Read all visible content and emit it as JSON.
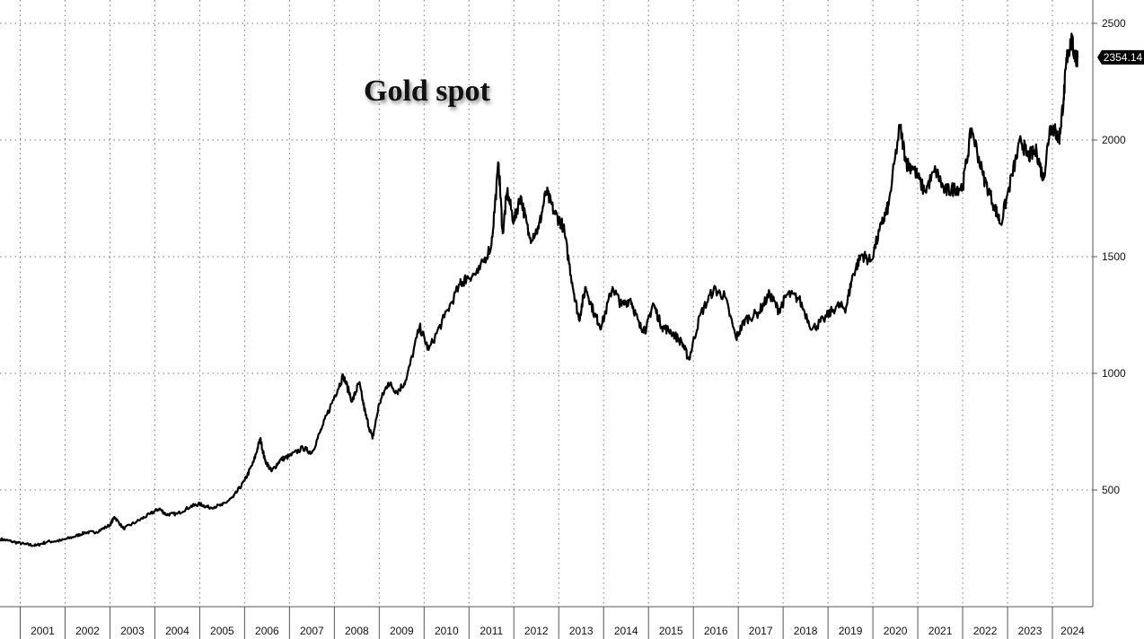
{
  "chart_data": {
    "type": "line",
    "title": "Gold spot",
    "xlabel": "",
    "ylabel": "",
    "xlim": [
      2000.55,
      2024.9
    ],
    "ylim": [
      0,
      2600
    ],
    "grid": true,
    "x_ticks": [
      "2001",
      "2002",
      "2003",
      "2004",
      "2005",
      "2006",
      "2007",
      "2008",
      "2009",
      "2010",
      "2011",
      "2012",
      "2013",
      "2014",
      "2015",
      "2016",
      "2017",
      "2018",
      "2019",
      "2020",
      "2021",
      "2022",
      "2023",
      "2024"
    ],
    "y_ticks": [
      500,
      1000,
      1500,
      2000,
      2500
    ],
    "last_value": "2354.14",
    "series": [
      {
        "points": [
          [
            2000.55,
            290
          ],
          [
            2000.8,
            280
          ],
          [
            2001.1,
            268
          ],
          [
            2001.35,
            262
          ],
          [
            2001.6,
            278
          ],
          [
            2001.9,
            283
          ],
          [
            2002.2,
            300
          ],
          [
            2002.45,
            318
          ],
          [
            2002.7,
            320
          ],
          [
            2003.0,
            350
          ],
          [
            2003.1,
            385
          ],
          [
            2003.3,
            335
          ],
          [
            2003.6,
            365
          ],
          [
            2003.9,
            398
          ],
          [
            2004.1,
            420
          ],
          [
            2004.25,
            395
          ],
          [
            2004.5,
            398
          ],
          [
            2004.8,
            430
          ],
          [
            2005.0,
            440
          ],
          [
            2005.2,
            425
          ],
          [
            2005.5,
            435
          ],
          [
            2005.75,
            470
          ],
          [
            2006.0,
            540
          ],
          [
            2006.2,
            620
          ],
          [
            2006.35,
            720
          ],
          [
            2006.45,
            630
          ],
          [
            2006.6,
            580
          ],
          [
            2006.8,
            630
          ],
          [
            2007.0,
            645
          ],
          [
            2007.3,
            680
          ],
          [
            2007.5,
            660
          ],
          [
            2007.75,
            780
          ],
          [
            2008.0,
            900
          ],
          [
            2008.2,
            990
          ],
          [
            2008.4,
            880
          ],
          [
            2008.55,
            960
          ],
          [
            2008.7,
            820
          ],
          [
            2008.85,
            720
          ],
          [
            2009.0,
            870
          ],
          [
            2009.2,
            960
          ],
          [
            2009.4,
            920
          ],
          [
            2009.6,
            970
          ],
          [
            2009.9,
            1200
          ],
          [
            2010.1,
            1100
          ],
          [
            2010.45,
            1240
          ],
          [
            2010.8,
            1380
          ],
          [
            2010.95,
            1410
          ],
          [
            2011.2,
            1430
          ],
          [
            2011.5,
            1550
          ],
          [
            2011.66,
            1900
          ],
          [
            2011.75,
            1600
          ],
          [
            2011.85,
            1780
          ],
          [
            2012.0,
            1650
          ],
          [
            2012.15,
            1760
          ],
          [
            2012.35,
            1580
          ],
          [
            2012.55,
            1620
          ],
          [
            2012.72,
            1780
          ],
          [
            2012.9,
            1690
          ],
          [
            2013.1,
            1630
          ],
          [
            2013.3,
            1390
          ],
          [
            2013.45,
            1230
          ],
          [
            2013.6,
            1370
          ],
          [
            2013.8,
            1250
          ],
          [
            2013.95,
            1200
          ],
          [
            2014.2,
            1370
          ],
          [
            2014.4,
            1290
          ],
          [
            2014.6,
            1320
          ],
          [
            2014.8,
            1200
          ],
          [
            2014.95,
            1190
          ],
          [
            2015.1,
            1300
          ],
          [
            2015.3,
            1200
          ],
          [
            2015.5,
            1180
          ],
          [
            2015.75,
            1130
          ],
          [
            2015.9,
            1060
          ],
          [
            2016.15,
            1250
          ],
          [
            2016.45,
            1360
          ],
          [
            2016.7,
            1330
          ],
          [
            2016.95,
            1150
          ],
          [
            2017.15,
            1230
          ],
          [
            2017.45,
            1260
          ],
          [
            2017.7,
            1340
          ],
          [
            2017.9,
            1270
          ],
          [
            2018.1,
            1340
          ],
          [
            2018.35,
            1320
          ],
          [
            2018.65,
            1190
          ],
          [
            2018.9,
            1230
          ],
          [
            2019.2,
            1290
          ],
          [
            2019.4,
            1280
          ],
          [
            2019.55,
            1420
          ],
          [
            2019.75,
            1510
          ],
          [
            2019.95,
            1480
          ],
          [
            2020.2,
            1640
          ],
          [
            2020.35,
            1720
          ],
          [
            2020.6,
            2060
          ],
          [
            2020.75,
            1900
          ],
          [
            2020.9,
            1880
          ],
          [
            2021.15,
            1780
          ],
          [
            2021.4,
            1870
          ],
          [
            2021.6,
            1780
          ],
          [
            2021.8,
            1790
          ],
          [
            2022.0,
            1800
          ],
          [
            2022.2,
            2050
          ],
          [
            2022.45,
            1850
          ],
          [
            2022.7,
            1720
          ],
          [
            2022.85,
            1640
          ],
          [
            2023.1,
            1850
          ],
          [
            2023.3,
            2000
          ],
          [
            2023.45,
            1930
          ],
          [
            2023.65,
            1950
          ],
          [
            2023.8,
            1830
          ],
          [
            2023.95,
            2060
          ],
          [
            2024.05,
            2040
          ],
          [
            2024.15,
            2000
          ],
          [
            2024.25,
            2180
          ],
          [
            2024.32,
            2350
          ],
          [
            2024.42,
            2430
          ],
          [
            2024.5,
            2360
          ],
          [
            2024.56,
            2354.14
          ]
        ]
      }
    ]
  }
}
